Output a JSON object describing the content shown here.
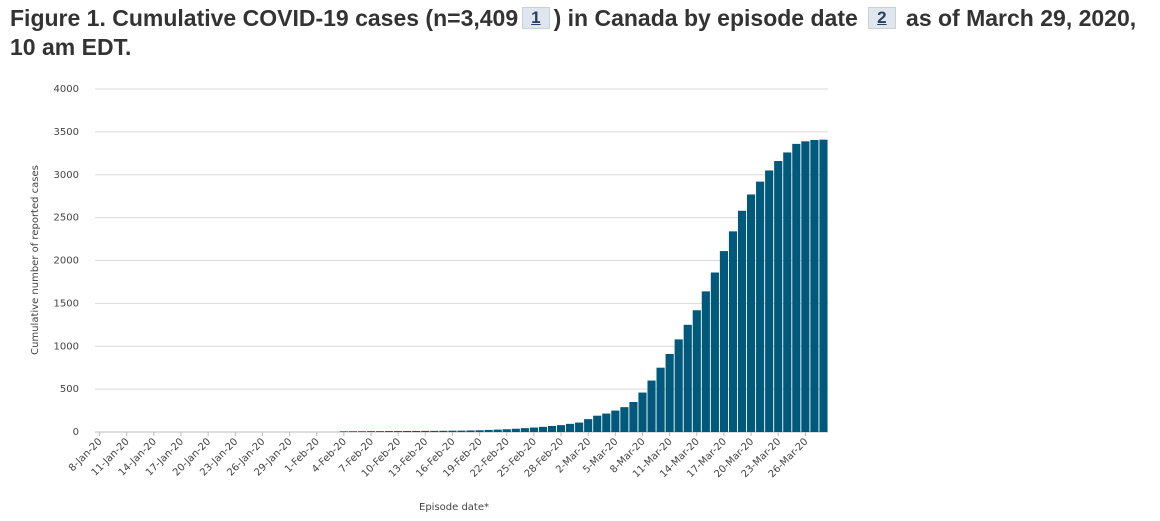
{
  "chart_data": {
    "type": "bar",
    "title": [
      "Figure 1. Cumulative COVID-19 cases (n=3,409",
      ") in Canada by episode date",
      "as of March 29, 2020, 10 am EDT."
    ],
    "footnotes": [
      "1",
      "2"
    ],
    "x_label": "Episode date*",
    "y_label": "Cumulative number  of reported  cases",
    "categories": [
      "8-Jan-20",
      null,
      null,
      "11-Jan-20",
      null,
      null,
      "14-Jan-20",
      null,
      null,
      "17-Jan-20",
      null,
      null,
      "20-Jan-20",
      null,
      null,
      "23-Jan-20",
      null,
      null,
      "26-Jan-20",
      null,
      null,
      "29-Jan-20",
      null,
      null,
      "1-Feb-20",
      null,
      null,
      "4-Feb-20",
      null,
      null,
      "7-Feb-20",
      null,
      null,
      "10-Feb-20",
      null,
      null,
      "13-Feb-20",
      null,
      null,
      "16-Feb-20",
      null,
      null,
      "19-Feb-20",
      null,
      null,
      "22-Feb-20",
      null,
      null,
      "25-Feb-20",
      null,
      null,
      "28-Feb-20",
      null,
      null,
      "2-Mar-20",
      null,
      null,
      "5-Mar-20",
      null,
      null,
      "8-Mar-20",
      null,
      null,
      "11-Mar-20",
      null,
      null,
      "14-Mar-20",
      null,
      null,
      "17-Mar-20",
      null,
      null,
      "20-Mar-20",
      null,
      null,
      "23-Mar-20",
      null,
      null,
      "26-Mar-20",
      null,
      null
    ],
    "values": [
      0,
      0,
      0,
      0,
      0,
      0,
      0,
      0,
      0,
      0,
      0,
      0,
      0,
      0,
      0,
      0,
      0,
      0,
      0,
      0,
      0,
      0,
      0,
      0,
      0,
      0,
      0,
      8,
      9,
      9,
      10,
      10,
      11,
      11,
      12,
      12,
      13,
      13,
      14,
      15,
      16,
      18,
      20,
      24,
      28,
      32,
      38,
      45,
      52,
      60,
      70,
      80,
      95,
      110,
      150,
      190,
      215,
      250,
      290,
      350,
      460,
      600,
      750,
      910,
      1080,
      1250,
      1420,
      1640,
      1860,
      2110,
      2340,
      2580,
      2770,
      2920,
      3050,
      3160,
      3260,
      3360,
      3390,
      3405,
      3409
    ],
    "color": "#00587a",
    "ylim": [
      0,
      4000
    ],
    "yticks": [
      0,
      500,
      1000,
      1500,
      2000,
      2500,
      3000,
      3500,
      4000
    ],
    "grid": true
  }
}
